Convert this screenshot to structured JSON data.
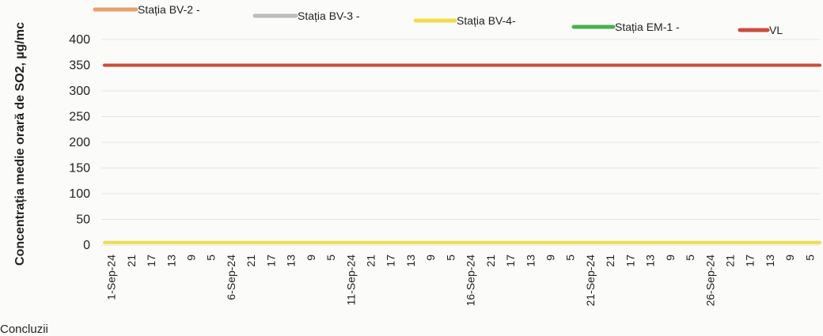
{
  "chart_data": {
    "type": "line",
    "ylabel": "Concentrația medie orară de SO2, µg/mc",
    "ylim": [
      0,
      400
    ],
    "yticks": [
      0,
      50,
      100,
      150,
      200,
      250,
      300,
      350,
      400
    ],
    "x_tick_labels": [
      "1-Sep-24",
      "21",
      "17",
      "13",
      "9",
      "5",
      "6-Sep-24",
      "21",
      "17",
      "13",
      "9",
      "5",
      "11-Sep-24",
      "21",
      "17",
      "13",
      "9",
      "5",
      "16-Sep-24",
      "21",
      "17",
      "13",
      "9",
      "5",
      "21-Sep-24",
      "21",
      "17",
      "13",
      "9",
      "5",
      "26-Sep-24",
      "21",
      "17",
      "13",
      "9",
      "5"
    ],
    "grid": true,
    "legend_position": "top",
    "series": [
      {
        "name": "Stația BV-2 -",
        "color": "#e8a070",
        "x": [
          "1-Sep-24",
          "5"
        ],
        "values": [
          null,
          null
        ]
      },
      {
        "name": "Stația BV-3 -",
        "color": "#bdbdbd",
        "x": [
          "1-Sep-24",
          "5"
        ],
        "values": [
          null,
          null
        ]
      },
      {
        "name": "Stația BV-4-",
        "color": "#f0dc50",
        "x": [
          "1-Sep-24",
          "5"
        ],
        "values": [
          5,
          5
        ]
      },
      {
        "name": "Stația EM-1 -",
        "color": "#4caf50",
        "x": [
          "1-Sep-24",
          "5"
        ],
        "values": [
          null,
          null
        ]
      },
      {
        "name": "VL",
        "color": "#cc4b3c",
        "x": [
          "1-Sep-24",
          "5"
        ],
        "values": [
          350,
          350
        ]
      }
    ]
  },
  "footer_text": "Concluzii"
}
